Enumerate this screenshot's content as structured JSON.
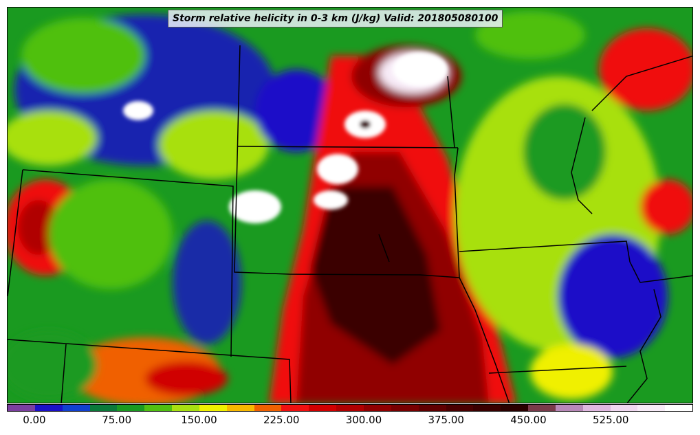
{
  "title": "Storm relative helicity in 0-3 km (J/kg) Valid: 201805080100",
  "colorbar": {
    "colors": [
      "#7b3fa0",
      "#1a10c8",
      "#1040d0",
      "#0a7a3a",
      "#1a9a20",
      "#50c010",
      "#a8e010",
      "#f0f000",
      "#f8b800",
      "#f06000",
      "#f01010",
      "#d00000",
      "#b00000",
      "#900000",
      "#780000",
      "#600000",
      "#4a0000",
      "#3a0000",
      "#2a0000",
      "#7a3a4a",
      "#b888b8",
      "#e0b8e0",
      "#f0d8f0",
      "#f8ecf8",
      "#ffffff"
    ],
    "ticks": [
      "0.00",
      "75.00",
      "150.00",
      "225.00",
      "300.00",
      "375.00",
      "450.00",
      "525.00"
    ],
    "tick_values": [
      0,
      75,
      150,
      225,
      300,
      375,
      450,
      525
    ],
    "range": [
      -25,
      600
    ]
  },
  "map_legend": {
    "field_colors": {
      "very_low": "#1a10c8",
      "low": "#1a9a20",
      "moderate": "#a8e010",
      "elevated": "#f01010",
      "high": "#900000",
      "extreme": "#3a0000",
      "peak": "#f8ecf8"
    }
  }
}
